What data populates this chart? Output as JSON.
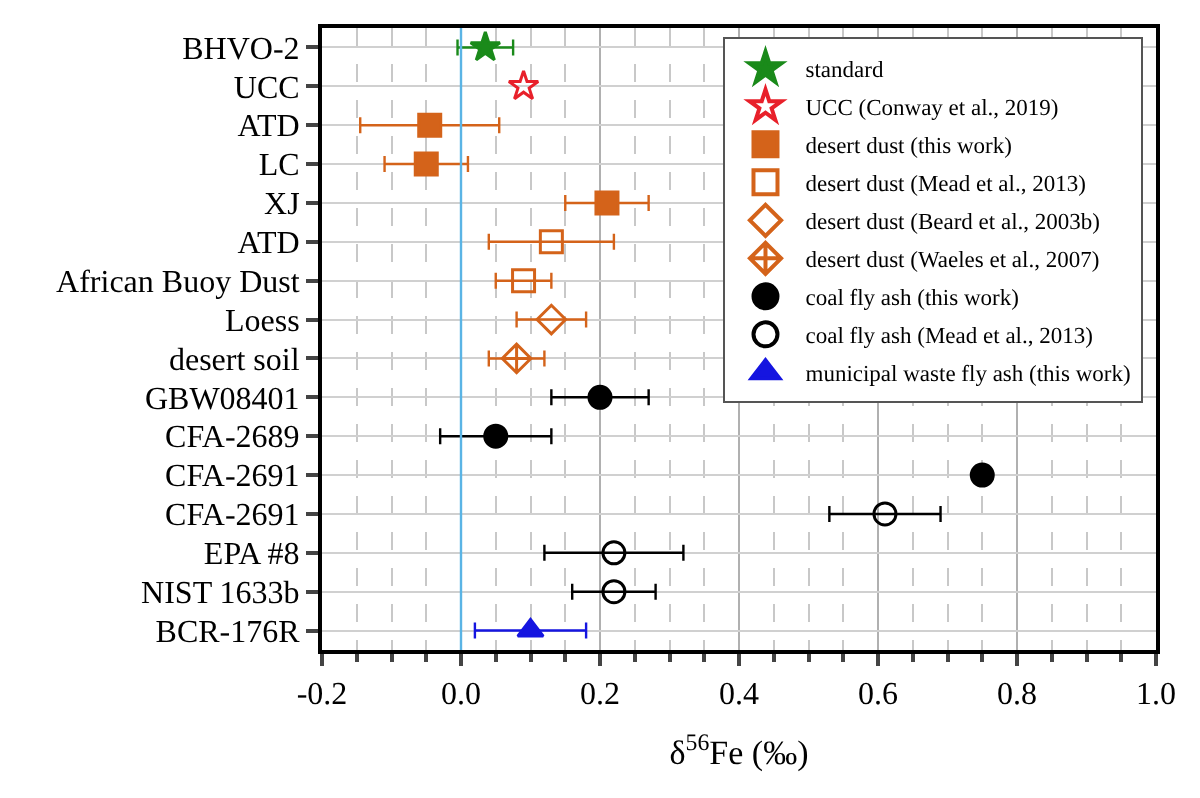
{
  "chart_data": {
    "type": "scatter",
    "orientation": "horizontal",
    "xlabel": "δ$^{56}$Fe (‰)",
    "categories": [
      "BHVO-2",
      "UCC",
      "ATD",
      "LC",
      "XJ",
      "ATD",
      "African Buoy Dust",
      "Loess",
      "desert soil",
      "GBW08401",
      "CFA-2689",
      "CFA-2691",
      "CFA-2691",
      "EPA #8",
      "NIST 1633b",
      "BCR-176R"
    ],
    "series": [
      {
        "name": "standard",
        "color": "#1a8a1a",
        "marker": "star",
        "values": [
          0.035,
          null,
          null,
          null,
          null,
          null,
          null,
          null,
          null,
          null,
          null,
          null,
          null,
          null,
          null,
          null
        ],
        "errors": [
          0.04,
          null,
          null,
          null,
          null,
          null,
          null,
          null,
          null,
          null,
          null,
          null,
          null,
          null,
          null,
          null
        ]
      },
      {
        "name": "UCC (Conway et al., 2019)",
        "color": "#e8202a",
        "marker": "star-open",
        "values": [
          null,
          0.09,
          null,
          null,
          null,
          null,
          null,
          null,
          null,
          null,
          null,
          null,
          null,
          null,
          null,
          null
        ]
      },
      {
        "name": "desert dust (this work)",
        "color": "#d4631a",
        "marker": "square",
        "values": [
          null,
          null,
          -0.045,
          -0.05,
          0.21,
          null,
          null,
          null,
          null,
          null,
          null,
          null,
          null,
          null,
          null,
          null
        ],
        "errors": [
          null,
          null,
          0.1,
          0.06,
          0.06,
          null,
          null,
          null,
          null,
          null,
          null,
          null,
          null,
          null,
          null,
          null
        ]
      },
      {
        "name": "desert dust (Mead et al., 2013)",
        "color": "#d4631a",
        "marker": "square-open",
        "values": [
          null,
          null,
          null,
          null,
          null,
          0.13,
          0.09,
          null,
          null,
          null,
          null,
          null,
          null,
          null,
          null,
          null
        ],
        "errors": [
          null,
          null,
          null,
          null,
          null,
          0.09,
          0.04,
          null,
          null,
          null,
          null,
          null,
          null,
          null,
          null,
          null
        ]
      },
      {
        "name": "desert dust (Beard et al., 2003b)",
        "color": "#d4631a",
        "marker": "diamond-open",
        "values": [
          null,
          null,
          null,
          null,
          null,
          null,
          null,
          0.13,
          null,
          null,
          null,
          null,
          null,
          null,
          null,
          null
        ],
        "errors": [
          null,
          null,
          null,
          null,
          null,
          null,
          null,
          0.05,
          null,
          null,
          null,
          null,
          null,
          null,
          null,
          null
        ]
      },
      {
        "name": "desert dust (Waeles et al., 2007)",
        "color": "#d4631a",
        "marker": "diamond-cross-open",
        "values": [
          null,
          null,
          null,
          null,
          null,
          null,
          null,
          null,
          0.08,
          null,
          null,
          null,
          null,
          null,
          null,
          null
        ],
        "errors": [
          null,
          null,
          null,
          null,
          null,
          null,
          null,
          null,
          0.04,
          null,
          null,
          null,
          null,
          null,
          null,
          null
        ]
      },
      {
        "name": "coal fly ash (this work)",
        "color": "#000000",
        "marker": "circle",
        "values": [
          null,
          null,
          null,
          null,
          null,
          null,
          null,
          null,
          null,
          0.2,
          0.05,
          0.75,
          null,
          null,
          null,
          null
        ],
        "errors": [
          null,
          null,
          null,
          null,
          null,
          null,
          null,
          null,
          null,
          0.07,
          0.08,
          null,
          null,
          null,
          null,
          null
        ]
      },
      {
        "name": "coal fly ash (Mead et al., 2013)",
        "color": "#000000",
        "marker": "circle-open",
        "values": [
          null,
          null,
          null,
          null,
          null,
          null,
          null,
          null,
          null,
          null,
          null,
          null,
          0.61,
          0.22,
          0.22,
          null
        ],
        "errors": [
          null,
          null,
          null,
          null,
          null,
          null,
          null,
          null,
          null,
          null,
          null,
          null,
          0.08,
          0.1,
          0.06,
          null
        ]
      },
      {
        "name": "municipal waste fly ash (this work)",
        "color": "#1515e0",
        "marker": "triangle",
        "values": [
          null,
          null,
          null,
          null,
          null,
          null,
          null,
          null,
          null,
          null,
          null,
          null,
          null,
          null,
          null,
          0.1
        ],
        "errors": [
          null,
          null,
          null,
          null,
          null,
          null,
          null,
          null,
          null,
          null,
          null,
          null,
          null,
          null,
          null,
          0.08
        ]
      }
    ],
    "xlim": [
      -0.2,
      1.0
    ],
    "xticks": [
      {
        "value": -0.2,
        "label": "-0.2"
      },
      {
        "value": 0,
        "label": "0.0"
      },
      {
        "value": 0.2,
        "label": "0.2"
      },
      {
        "value": 0.4,
        "label": "0.4"
      },
      {
        "value": 0.6,
        "label": "0.6"
      },
      {
        "value": 0.8,
        "label": "0.8"
      },
      {
        "value": 1.0,
        "label": "1.0"
      }
    ],
    "ref_lines": [
      {
        "axis": "x",
        "value": 0,
        "color": "#5ab4e5"
      }
    ],
    "grid": true,
    "legend": "top right"
  }
}
